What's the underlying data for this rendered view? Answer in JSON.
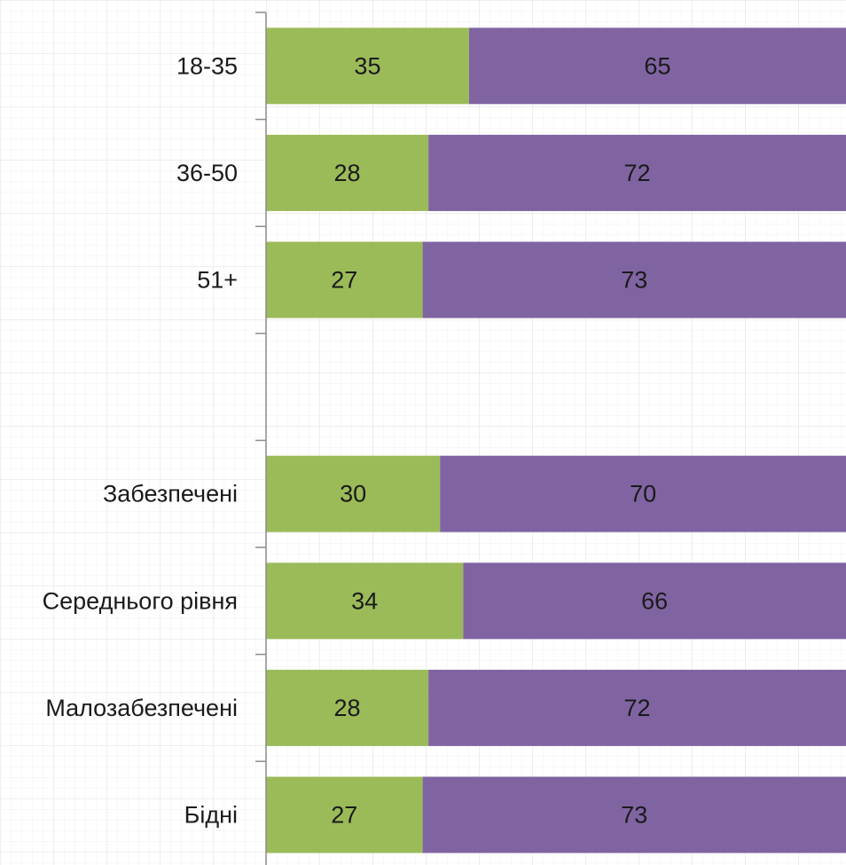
{
  "chart_data": {
    "type": "bar",
    "orientation": "horizontal",
    "stacked": "percent",
    "categories": [
      "18-35",
      "36-50",
      "51+",
      "",
      "Забезпечені",
      "Середнього рівня",
      "Малозабезпечені",
      "Бідні"
    ],
    "series": [
      {
        "values": [
          35,
          28,
          27,
          null,
          30,
          34,
          28,
          27
        ],
        "color": "#9BBB59"
      },
      {
        "values": [
          65,
          72,
          73,
          null,
          70,
          66,
          72,
          73
        ],
        "color": "#8064A2"
      }
    ],
    "xlim": [
      0,
      100
    ],
    "grid": true,
    "legend": "none",
    "title": "",
    "xlabel": "",
    "ylabel": ""
  }
}
